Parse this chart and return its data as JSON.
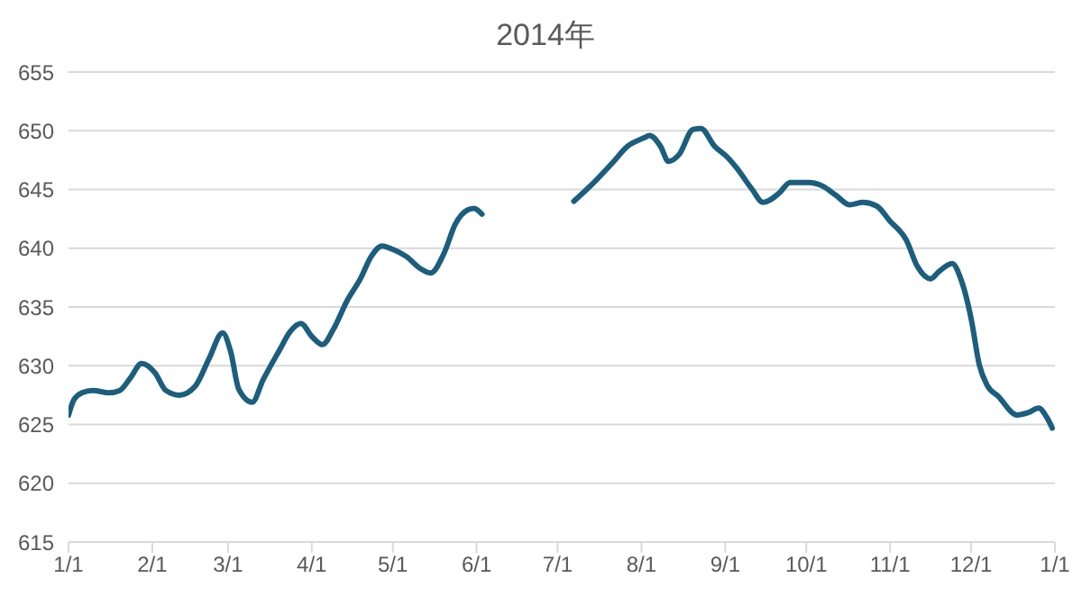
{
  "chart_data": {
    "type": "line",
    "title": "2014年",
    "x": [
      "2014-01-01",
      "2014-01-03",
      "2014-01-06",
      "2014-01-10",
      "2014-01-16",
      "2014-01-20",
      "2014-01-24",
      "2014-01-28",
      "2014-02-02",
      "2014-02-06",
      "2014-02-11",
      "2014-02-17",
      "2014-02-22",
      "2014-02-27",
      "2014-03-02",
      "2014-03-05",
      "2014-03-10",
      "2014-03-14",
      "2014-03-20",
      "2014-03-24",
      "2014-03-28",
      "2014-04-01",
      "2014-04-05",
      "2014-04-09",
      "2014-04-14",
      "2014-04-19",
      "2014-04-23",
      "2014-04-27",
      "2014-05-01",
      "2014-05-06",
      "2014-05-11",
      "2014-05-15",
      "2014-05-20",
      "2014-05-24",
      "2014-05-29",
      "2014-05-31",
      "2014-06-03",
      "2014-06-20",
      "2014-07-07",
      "2014-07-14",
      "2014-07-21",
      "2014-07-27",
      "2014-08-02",
      "2014-08-04",
      "2014-08-08",
      "2014-08-11",
      "2014-08-15",
      "2014-08-20",
      "2014-08-23",
      "2014-08-28",
      "2014-09-02",
      "2014-09-05",
      "2014-09-11",
      "2014-09-15",
      "2014-09-21",
      "2014-09-25",
      "2014-10-02",
      "2014-10-07",
      "2014-10-12",
      "2014-10-17",
      "2014-10-22",
      "2014-10-27",
      "2014-11-01",
      "2014-11-07",
      "2014-11-11",
      "2014-11-16",
      "2014-11-19",
      "2014-11-24",
      "2014-11-27",
      "2014-12-01",
      "2014-12-04",
      "2014-12-07",
      "2014-12-11",
      "2014-12-18",
      "2014-12-22",
      "2014-12-26",
      "2014-12-29",
      "2014-12-31"
    ],
    "series": [
      {
        "color": "#1b5e7e",
        "values": [
          625.8,
          627.1,
          627.7,
          627.9,
          627.7,
          627.9,
          629.0,
          630.2,
          629.4,
          627.9,
          627.5,
          628.3,
          630.6,
          632.8,
          631.2,
          628.0,
          626.9,
          628.8,
          631.3,
          632.9,
          633.6,
          632.5,
          631.8,
          633.1,
          635.5,
          637.4,
          639.3,
          640.2,
          639.9,
          639.3,
          638.3,
          637.9,
          639.6,
          642.0,
          643.3,
          643.4,
          642.9,
          null,
          644.0,
          645.5,
          647.2,
          648.7,
          649.4,
          649.6,
          648.7,
          647.4,
          648.0,
          650.1,
          650.2,
          648.7,
          647.7,
          646.9,
          645.0,
          643.9,
          644.7,
          645.6,
          645.6,
          645.3,
          644.5,
          643.7,
          643.9,
          643.6,
          642.3,
          640.7,
          638.5,
          637.4,
          638.0,
          638.7,
          637.5,
          634.0,
          630.1,
          628.3,
          627.4,
          625.8,
          626.0,
          626.4,
          625.6,
          624.7
        ]
      }
    ],
    "xlim": [
      "2014-01-01",
      "2015-01-01"
    ],
    "xticks": [
      {
        "value": "2014-01-01",
        "label": "1/1"
      },
      {
        "value": "2014-02-01",
        "label": "2/1"
      },
      {
        "value": "2014-03-01",
        "label": "3/1"
      },
      {
        "value": "2014-04-01",
        "label": "4/1"
      },
      {
        "value": "2014-05-01",
        "label": "5/1"
      },
      {
        "value": "2014-06-01",
        "label": "6/1"
      },
      {
        "value": "2014-07-01",
        "label": "7/1"
      },
      {
        "value": "2014-08-01",
        "label": "8/1"
      },
      {
        "value": "2014-09-01",
        "label": "9/1"
      },
      {
        "value": "2014-10-01",
        "label": "10/1"
      },
      {
        "value": "2014-11-01",
        "label": "11/1"
      },
      {
        "value": "2014-12-01",
        "label": "12/1"
      },
      {
        "value": "2015-01-01",
        "label": "1/1"
      }
    ],
    "ylim": [
      615,
      655
    ],
    "yticks": [
      615,
      620,
      625,
      630,
      635,
      640,
      645,
      650,
      655
    ],
    "grid": "y",
    "legend": false,
    "marker": "none",
    "line_style": "solid"
  }
}
